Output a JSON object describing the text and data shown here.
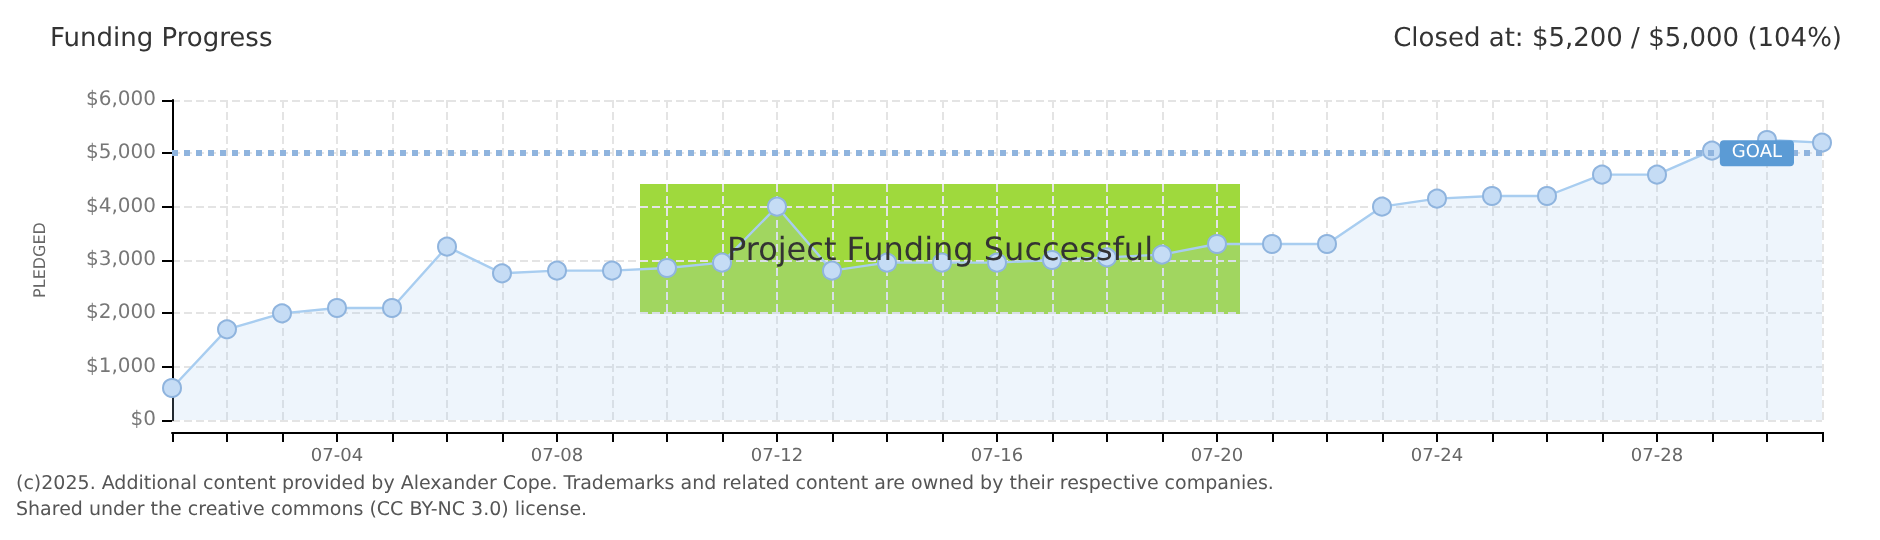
{
  "chart_data": {
    "type": "area",
    "title": "Funding Progress",
    "subtitle": "Closed at: $5,200 / $5,000 (104%)",
    "ylabel": "PLEDGED",
    "categories": [
      null,
      null,
      null,
      "07-04",
      null,
      null,
      null,
      "07-08",
      null,
      null,
      null,
      "07-12",
      null,
      null,
      null,
      "07-16",
      null,
      null,
      null,
      "07-20",
      null,
      null,
      null,
      "07-24",
      null,
      null,
      null,
      "07-28",
      null,
      null,
      null
    ],
    "series": [
      {
        "color": "#a8cdf0",
        "values": [
          600,
          1700,
          2000,
          2100,
          2100,
          3250,
          2750,
          2800,
          2800,
          2850,
          2950,
          4000,
          2800,
          2950,
          2950,
          2950,
          3000,
          3050,
          3100,
          3300,
          3300,
          3300,
          4000,
          4150,
          4200,
          4200,
          4600,
          4600,
          5050,
          5250,
          5200
        ]
      }
    ],
    "ylim": [
      0,
      6000
    ],
    "yticks": [
      {
        "value": 0,
        "label": "$0"
      },
      {
        "value": 1000,
        "label": "$1,000"
      },
      {
        "value": 2000,
        "label": "$2,000"
      },
      {
        "value": 3000,
        "label": "$3,000"
      },
      {
        "value": 4000,
        "label": "$4,000"
      },
      {
        "value": 5000,
        "label": "$5,000"
      },
      {
        "value": 6000,
        "label": "$6,000"
      }
    ],
    "ref_lines": [
      {
        "axis": "y",
        "value": 5000,
        "label": "GOAL",
        "color": "#8fb4de",
        "line_style": "dotted"
      }
    ],
    "annotations": [
      {
        "text": "Project Funding Successful"
      },
      "(c)2025. Additional content provided by Alexander Cope. Trademarks and related content are owned by their respective companies.",
      "Shared under the creative commons (CC BY-NC 3.0) license."
    ],
    "grid": true,
    "marker": "circle",
    "line_style": "solid"
  }
}
